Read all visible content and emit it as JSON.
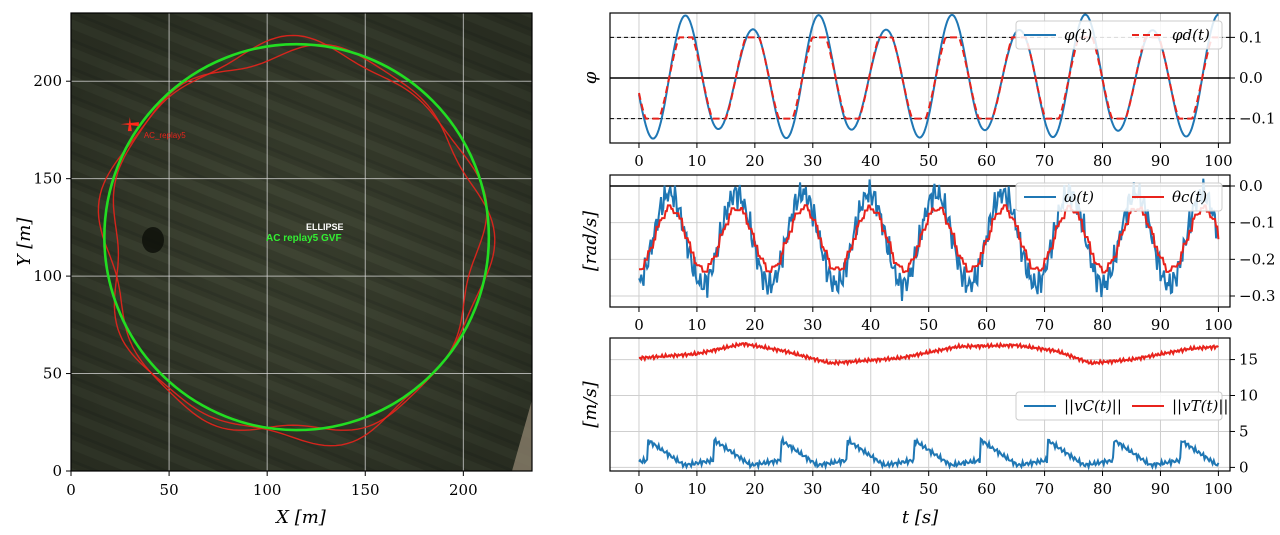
{
  "chart_data": [
    {
      "type": "scatter",
      "background": "satellite-image",
      "xlabel": "X [m]",
      "ylabel": "Y [m]",
      "xlim": [
        0,
        235
      ],
      "ylim": [
        0,
        235
      ],
      "xticks": [
        "0",
        "50",
        "100",
        "150",
        "200"
      ],
      "yticks": [
        "0",
        "50",
        "100",
        "150",
        "200"
      ],
      "grid": true,
      "overlay_labels": {
        "ellipse": "ELLIPSE",
        "gvf": "AC replay5 GVF",
        "aircraft": "AC_replay5"
      },
      "series": [
        {
          "color": "#22dd22",
          "shape": "ellipse",
          "center": [
            115,
            120
          ],
          "radii": [
            98,
            99
          ]
        },
        {
          "color": "#e8231c",
          "shape": "trajectory",
          "center": [
            113,
            118
          ],
          "radii": [
            96,
            100
          ]
        }
      ],
      "aircraft_position": [
        30,
        178
      ]
    },
    {
      "type": "line",
      "ylabel": "φ",
      "xlim": [
        -5,
        102
      ],
      "ylim": [
        -0.16,
        0.16
      ],
      "xticks": [
        "0",
        "10",
        "20",
        "30",
        "40",
        "50",
        "60",
        "70",
        "80",
        "90",
        "100"
      ],
      "yticks": [
        "0.1",
        "0.0",
        "−0.1"
      ],
      "reference_lines": [
        0.1,
        0,
        -0.1
      ],
      "legend_position": "top-right",
      "series": [
        {
          "name": "φ(t)",
          "color": "#1f77b4",
          "style": "solid",
          "period": 11.5,
          "amplitude": 0.137,
          "offset": 0.0
        },
        {
          "name": "φd(t)",
          "color": "#e8231c",
          "style": "dashed",
          "period": 11.5,
          "amplitude": 0.1,
          "offset": 0.0
        }
      ]
    },
    {
      "type": "line",
      "ylabel": "[rad/s]",
      "xlim": [
        -5,
        102
      ],
      "ylim": [
        -0.33,
        0.03
      ],
      "xticks": [
        "0",
        "10",
        "20",
        "30",
        "40",
        "50",
        "60",
        "70",
        "80",
        "90",
        "100"
      ],
      "yticks": [
        "0.0",
        "−0.1",
        "−0.2",
        "−0.3"
      ],
      "reference_lines": [
        0.0
      ],
      "legend_position": "top-right",
      "series": [
        {
          "name": "ω(t)",
          "color": "#1f77b4",
          "style": "solid",
          "period": 11.5,
          "center": -0.145,
          "amplitude": 0.125
        },
        {
          "name": "θc(t)",
          "color": "#e8231c",
          "style": "solid",
          "period": 11.5,
          "center": -0.145,
          "amplitude": 0.085
        }
      ]
    },
    {
      "type": "line",
      "xlabel": "t [s]",
      "ylabel": "[m/s]",
      "xlim": [
        -5,
        102
      ],
      "ylim": [
        -0.5,
        18
      ],
      "xticks": [
        "0",
        "10",
        "20",
        "30",
        "40",
        "50",
        "60",
        "70",
        "80",
        "90",
        "100"
      ],
      "yticks": [
        "15",
        "10",
        "5",
        "0"
      ],
      "legend_position": "center-right",
      "series": [
        {
          "name": "||vC(t)||",
          "color": "#1f77b4",
          "style": "solid",
          "period": 11.5,
          "min": 0.3,
          "max": 3.8
        },
        {
          "name": "||vT(t)||",
          "color": "#e8231c",
          "style": "solid",
          "keypoints": [
            [
              0,
              15.2
            ],
            [
              10,
              15.8
            ],
            [
              18,
              17.2
            ],
            [
              25,
              16.2
            ],
            [
              33,
              14.5
            ],
            [
              45,
              15.2
            ],
            [
              55,
              16.8
            ],
            [
              65,
              17.0
            ],
            [
              72,
              16.2
            ],
            [
              78,
              14.5
            ],
            [
              85,
              15.0
            ],
            [
              95,
              16.5
            ],
            [
              100,
              16.8
            ]
          ]
        }
      ]
    }
  ]
}
